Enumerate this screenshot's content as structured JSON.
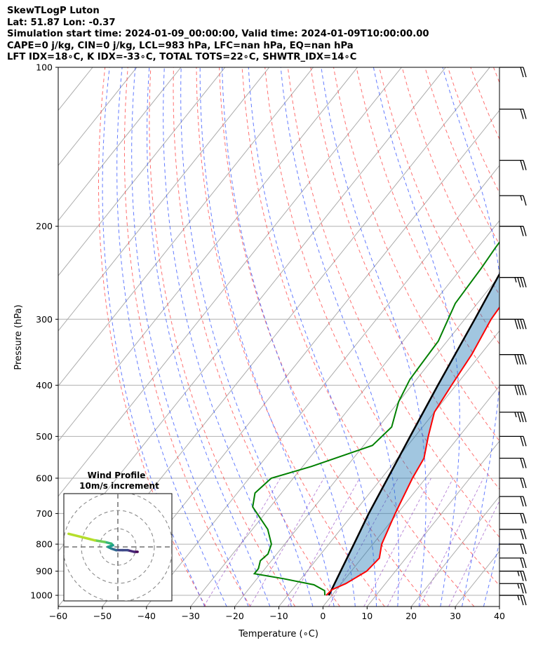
{
  "header": {
    "line1": "SkewTLogP Luton",
    "line2": "Lat: 51.87   Lon: -0.37",
    "line3": "Simulation start time: 2024-01-09_00:00:00, Valid time: 2024-01-09T10:00:00.00",
    "line4": "CAPE=0 j/kg, CIN=0 j/kg, LCL=983 hPa, LFC=nan hPa, EQ=nan hPa",
    "line5": "LFT IDX=18∘C, K IDX=-33∘C, TOTAL TOTS=22∘C, SHWTR_IDX=14∘C"
  },
  "chart_data": {
    "type": "line",
    "title": "SkewTLogP Luton",
    "xlabel": "Temperature (∘C)",
    "ylabel": "Pressure (hPa)",
    "xlim": [
      -60,
      40
    ],
    "ylim": [
      1050,
      100
    ],
    "y_scale": "log",
    "x_ticks": [
      -60,
      -50,
      -40,
      -30,
      -20,
      -10,
      0,
      10,
      20,
      30,
      40
    ],
    "x_tick_labels": [
      "−60",
      "−50",
      "−40",
      "−30",
      "−20",
      "−10",
      "0",
      "10",
      "20",
      "30",
      "40"
    ],
    "y_ticks": [
      1000,
      900,
      800,
      700,
      600,
      500,
      400,
      300,
      200,
      100
    ],
    "y_tick_labels": [
      "1000",
      "900",
      "800",
      "700",
      "600",
      "500",
      "400",
      "300",
      "200",
      "100"
    ],
    "grid": true,
    "series": [
      {
        "role": "temperature",
        "color": "#ff0000",
        "points": [
          [
            1000,
            -1.3
          ],
          [
            975,
            -1
          ],
          [
            950,
            1
          ],
          [
            900,
            3.5
          ],
          [
            850,
            4
          ],
          [
            800,
            2
          ],
          [
            700,
            -0.5
          ],
          [
            600,
            -3
          ],
          [
            550,
            -4
          ],
          [
            500,
            -7
          ],
          [
            450,
            -10
          ],
          [
            400,
            -11
          ],
          [
            350,
            -12
          ],
          [
            300,
            -14
          ],
          [
            270,
            -14.5
          ],
          [
            250,
            -12
          ],
          [
            230,
            -8
          ],
          [
            210,
            -6.5
          ],
          [
            190,
            -6
          ],
          [
            170,
            -2
          ],
          [
            150,
            2
          ],
          [
            130,
            5
          ],
          [
            110,
            11
          ],
          [
            100,
            14
          ]
        ]
      },
      {
        "role": "dewpoint",
        "color": "#008000",
        "points": [
          [
            1000,
            -1.6
          ],
          [
            980,
            -2.5
          ],
          [
            955,
            -6
          ],
          [
            930,
            -14
          ],
          [
            910,
            -21.5
          ],
          [
            890,
            -21.5
          ],
          [
            860,
            -22.5
          ],
          [
            835,
            -22
          ],
          [
            800,
            -23
          ],
          [
            750,
            -26.5
          ],
          [
            680,
            -34
          ],
          [
            640,
            -36
          ],
          [
            600,
            -35
          ],
          [
            570,
            -28
          ],
          [
            520,
            -18
          ],
          [
            480,
            -17
          ],
          [
            430,
            -20
          ],
          [
            390,
            -21.5
          ],
          [
            330,
            -22
          ],
          [
            280,
            -25
          ],
          [
            240,
            -25.5
          ],
          [
            220,
            -26
          ],
          [
            190,
            -26.5
          ],
          [
            175,
            -26
          ],
          [
            150,
            -22
          ],
          [
            120,
            -16
          ],
          [
            100,
            -9
          ]
        ]
      },
      {
        "role": "parcel_profile",
        "color": "#000000",
        "points": [
          [
            1000,
            -0.7
          ],
          [
            900,
            -2.4
          ],
          [
            800,
            -4.3
          ],
          [
            700,
            -6.5
          ],
          [
            600,
            -8.6
          ],
          [
            500,
            -11.1
          ],
          [
            400,
            -14.1
          ],
          [
            300,
            -17.7
          ],
          [
            250,
            -20.1
          ],
          [
            200,
            -22.8
          ],
          [
            150,
            -26.2
          ],
          [
            100,
            -31.1
          ]
        ]
      }
    ],
    "wind_barbs": [
      {
        "p": 100,
        "speed": 20,
        "dir": "W"
      },
      {
        "p": 120,
        "speed": 20,
        "dir": "W"
      },
      {
        "p": 150,
        "speed": 20,
        "dir": "W"
      },
      {
        "p": 175,
        "speed": 15,
        "dir": "W"
      },
      {
        "p": 200,
        "speed": 20,
        "dir": "W"
      },
      {
        "p": 250,
        "speed": 35,
        "dir": "W"
      },
      {
        "p": 300,
        "speed": 40,
        "dir": "W"
      },
      {
        "p": 350,
        "speed": 40,
        "dir": "W"
      },
      {
        "p": 400,
        "speed": 40,
        "dir": "W"
      },
      {
        "p": 450,
        "speed": 35,
        "dir": "W"
      },
      {
        "p": 500,
        "speed": 20,
        "dir": "W"
      },
      {
        "p": 550,
        "speed": 20,
        "dir": "W"
      },
      {
        "p": 600,
        "speed": 20,
        "dir": "W"
      },
      {
        "p": 650,
        "speed": 20,
        "dir": "W"
      },
      {
        "p": 700,
        "speed": 20,
        "dir": "W"
      },
      {
        "p": 750,
        "speed": 20,
        "dir": "W"
      },
      {
        "p": 800,
        "speed": 20,
        "dir": "W"
      },
      {
        "p": 850,
        "speed": 20,
        "dir": "W"
      },
      {
        "p": 900,
        "speed": 25,
        "dir": "W"
      },
      {
        "p": 950,
        "speed": 25,
        "dir": "W"
      },
      {
        "p": 1000,
        "speed": 25,
        "dir": "W"
      }
    ],
    "hodograph": {
      "title": "Wind Profile",
      "subtitle": "10m/s increment",
      "rings": [
        10,
        20,
        30
      ],
      "points": [
        [
          12,
          -3
        ],
        [
          10,
          -3
        ],
        [
          6,
          -2
        ],
        [
          3,
          -2
        ],
        [
          -1,
          -2
        ],
        [
          -4,
          -1
        ],
        [
          -6,
          0
        ],
        [
          -3,
          1
        ],
        [
          -4,
          2
        ],
        [
          -8,
          3
        ],
        [
          -14,
          4
        ],
        [
          -22,
          6
        ],
        [
          -30,
          8
        ]
      ]
    }
  }
}
